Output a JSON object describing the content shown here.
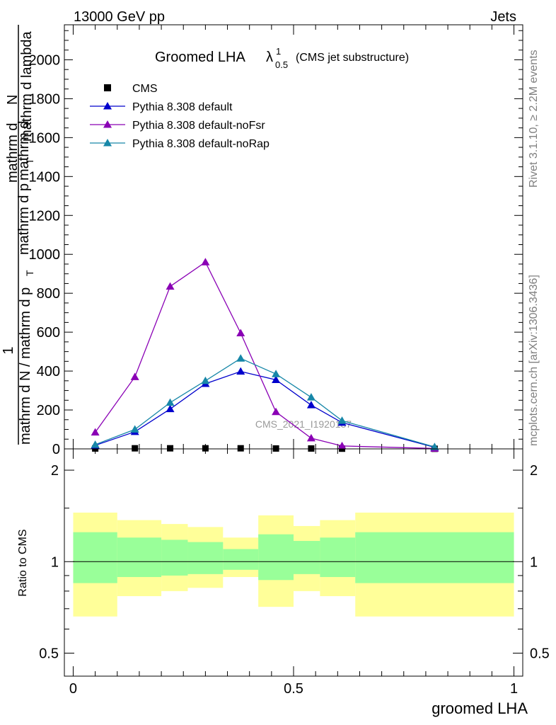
{
  "header": {
    "left": "13000 GeV pp",
    "right": "Jets"
  },
  "side": {
    "rivet": "Rivet 3.1.10, ≥ 2.2M events",
    "mcplots": "mcplots.cern.ch [arXiv:1306.3436]"
  },
  "title": {
    "main": "Groomed LHA",
    "symbol": "λ",
    "sup": "1",
    "sub": "0.5",
    "note": "(CMS jet substructure)"
  },
  "ylabel_main": {
    "line1": "1",
    "line2": "mathrm d N / mathrm d p",
    "sub1": "T",
    "line3": "mathrm d",
    "line4": "N",
    "frac_top": "mathrm d",
    "frac_bottom": "mathrm d p",
    "sub2": "T",
    "frac_bottom2": "mathrm d lambda"
  },
  "ylabel_ratio": "Ratio to CMS",
  "xlabel": "groomed LHA",
  "watermark": "CMS_2021_I1920187",
  "chart_data": [
    {
      "type": "line",
      "xlim": [
        -0.02,
        1.02
      ],
      "ylim": [
        0,
        2180
      ],
      "y_ticks": [
        0,
        200,
        400,
        600,
        800,
        1000,
        1200,
        1400,
        1600,
        1800,
        2000
      ],
      "y_tick_labels": [
        "0",
        "200",
        "400",
        "600",
        "800",
        "1000",
        "1200",
        "1400",
        "1600",
        "1800",
        "2000"
      ],
      "legend_position": "top-left",
      "series": [
        {
          "name": "CMS",
          "color": "#000000",
          "marker": "square",
          "x": [
            0.05,
            0.14,
            0.22,
            0.3,
            0.38,
            0.46,
            0.54,
            0.61,
            0.82
          ],
          "y": [
            2,
            3,
            3,
            3,
            3,
            2,
            2,
            1,
            0.5
          ]
        },
        {
          "name": "Pythia 8.308 default",
          "color": "#0000cc",
          "marker": "triangle",
          "x": [
            0.05,
            0.14,
            0.22,
            0.3,
            0.38,
            0.46,
            0.54,
            0.61,
            0.82
          ],
          "y": [
            18,
            88,
            205,
            335,
            398,
            355,
            225,
            135,
            8
          ]
        },
        {
          "name": "Pythia 8.308 default-noFsr",
          "color": "#8a00b5",
          "marker": "triangle",
          "x": [
            0.05,
            0.14,
            0.22,
            0.3,
            0.38,
            0.46,
            0.54,
            0.61,
            0.82
          ],
          "y": [
            85,
            370,
            835,
            960,
            595,
            190,
            55,
            15,
            2
          ]
        },
        {
          "name": "Pythia 8.308 default-noRap",
          "color": "#1787a8",
          "marker": "triangle",
          "x": [
            0.05,
            0.14,
            0.22,
            0.3,
            0.38,
            0.46,
            0.54,
            0.61,
            0.82
          ],
          "y": [
            22,
            100,
            238,
            350,
            465,
            385,
            265,
            145,
            10
          ]
        }
      ]
    },
    {
      "type": "area",
      "ylabel": "Ratio to CMS",
      "xlabel": "groomed LHA",
      "xlim": [
        -0.02,
        1.02
      ],
      "ylim": [
        0.42,
        2.35
      ],
      "y_ticks": [
        0.5,
        1,
        2
      ],
      "y_tick_labels": [
        "0.5",
        "1",
        "2"
      ],
      "x_ticks": [
        0,
        0.5,
        1
      ],
      "x_tick_labels": [
        "0",
        "0.5",
        "1"
      ],
      "bins": [
        0,
        0.1,
        0.2,
        0.26,
        0.34,
        0.42,
        0.5,
        0.56,
        0.64,
        1.0
      ],
      "ratio_line": 1,
      "band_inner": {
        "color": "#99ff99",
        "low": [
          0.85,
          0.89,
          0.9,
          0.91,
          0.94,
          0.87,
          0.91,
          0.89,
          0.85
        ],
        "high": [
          1.25,
          1.2,
          1.18,
          1.16,
          1.1,
          1.23,
          1.17,
          1.2,
          1.25
        ]
      },
      "band_outer": {
        "color": "#ffff99",
        "low": [
          0.66,
          0.77,
          0.8,
          0.82,
          0.89,
          0.71,
          0.8,
          0.77,
          0.66
        ],
        "high": [
          1.45,
          1.37,
          1.33,
          1.3,
          1.2,
          1.42,
          1.31,
          1.37,
          1.45
        ]
      }
    }
  ]
}
